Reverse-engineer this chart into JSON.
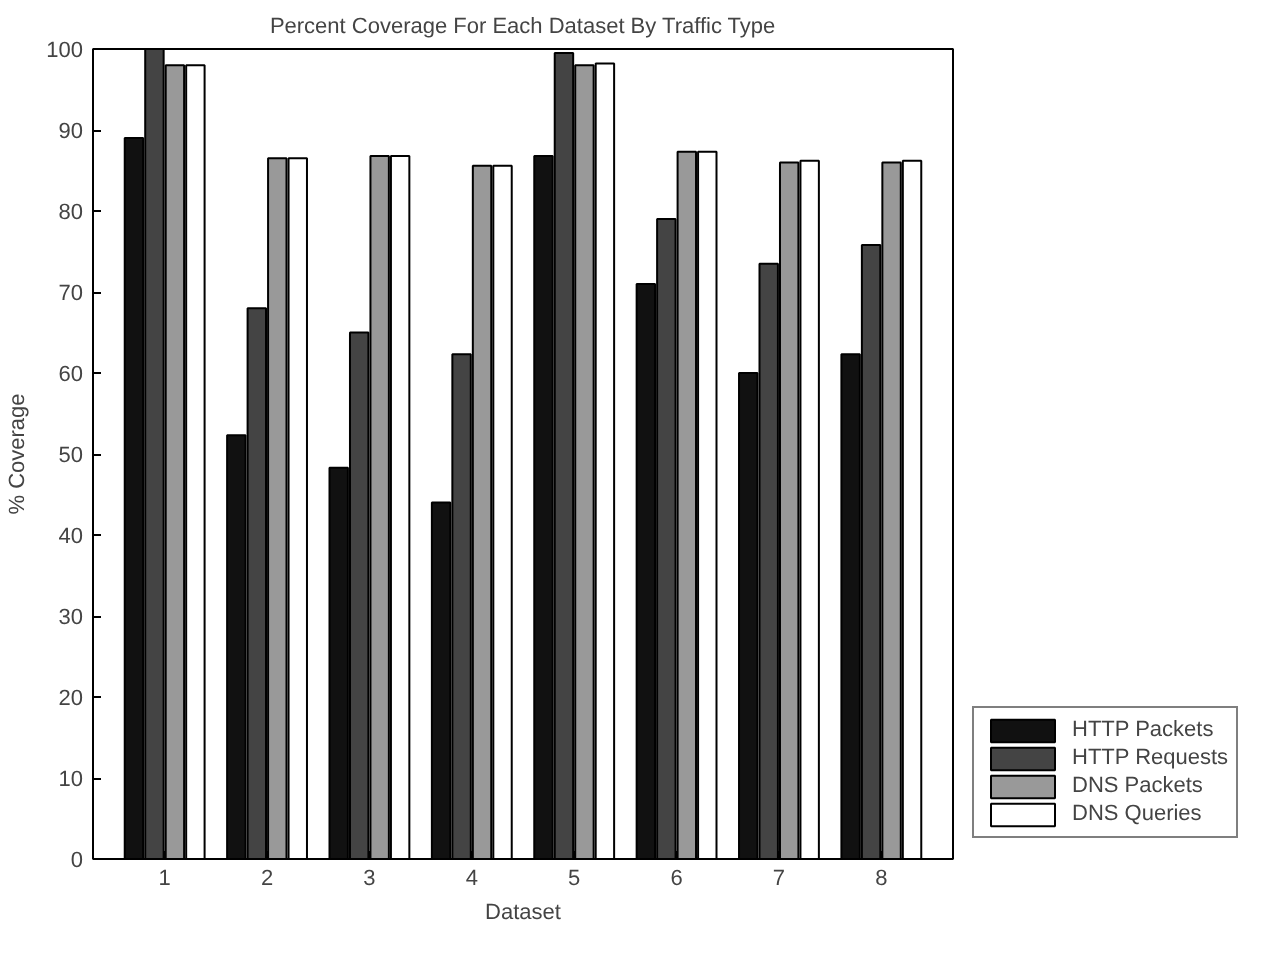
{
  "chart_data": {
    "type": "bar",
    "title": "Percent Coverage For Each Dataset By Traffic Type",
    "xlabel": "Dataset",
    "ylabel": "% Coverage",
    "categories": [
      "1",
      "2",
      "3",
      "4",
      "5",
      "6",
      "7",
      "8"
    ],
    "series": [
      {
        "name": "HTTP Packets",
        "color": "#111111",
        "values": [
          89,
          52.3,
          48.3,
          44,
          86.8,
          71,
          60,
          62.3
        ]
      },
      {
        "name": "HTTP Requests",
        "color": "#444444",
        "values": [
          100,
          68,
          65,
          62.3,
          99.5,
          79,
          73.5,
          75.8
        ]
      },
      {
        "name": "DNS Packets",
        "color": "#999999",
        "values": [
          98,
          86.5,
          86.8,
          85.6,
          98,
          87.3,
          86,
          86
        ]
      },
      {
        "name": "DNS Queries",
        "color": "#ffffff",
        "values": [
          98,
          86.5,
          86.8,
          85.6,
          98.2,
          87.3,
          86.2,
          86.2
        ]
      }
    ],
    "ylim": [
      0,
      100
    ],
    "yticks": [
      0,
      10,
      20,
      30,
      40,
      50,
      60,
      70,
      80,
      90,
      100
    ],
    "grid": false,
    "legend": "bottom right"
  }
}
